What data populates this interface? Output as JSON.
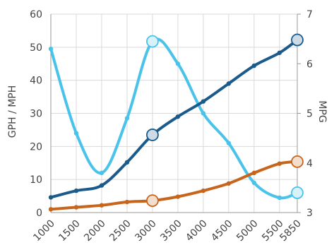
{
  "chart_data": {
    "type": "line",
    "categories": [
      "1000",
      "1500",
      "2000",
      "2500",
      "3000",
      "3500",
      "4000",
      "4500",
      "5000",
      "5500",
      "5850"
    ],
    "x": [
      1000,
      1500,
      2000,
      2500,
      3000,
      3500,
      4000,
      4500,
      5000,
      5500,
      5850
    ],
    "ylabel": "GPH / MPH",
    "y2label": "MPG",
    "ylim": [
      0,
      60
    ],
    "y2lim": [
      3,
      7
    ],
    "yticks": [
      0,
      10,
      20,
      30,
      40,
      50,
      60
    ],
    "y2ticks": [
      3,
      4,
      5,
      6,
      7
    ],
    "grid": true,
    "series": [
      {
        "axis": "left",
        "color": "#1a5b8c",
        "values": [
          4.6,
          6.6,
          8.2,
          15.2,
          23.5,
          29.0,
          33.6,
          39.0,
          44.4,
          48.3,
          52.2
        ],
        "highlighted_points": [
          3000,
          5850
        ]
      },
      {
        "axis": "left",
        "color": "#c8651c",
        "values": [
          1.0,
          1.6,
          2.2,
          3.2,
          3.6,
          4.8,
          6.6,
          8.8,
          12.0,
          14.8,
          15.4
        ],
        "highlighted_points": [
          3000,
          5850
        ]
      },
      {
        "axis": "right",
        "color": "#49c3ea",
        "values": [
          6.3,
          4.6,
          3.8,
          4.9,
          6.45,
          6.0,
          5.0,
          4.4,
          3.6,
          3.3,
          3.4
        ],
        "highlighted_points": [
          3000,
          5850
        ]
      }
    ]
  }
}
